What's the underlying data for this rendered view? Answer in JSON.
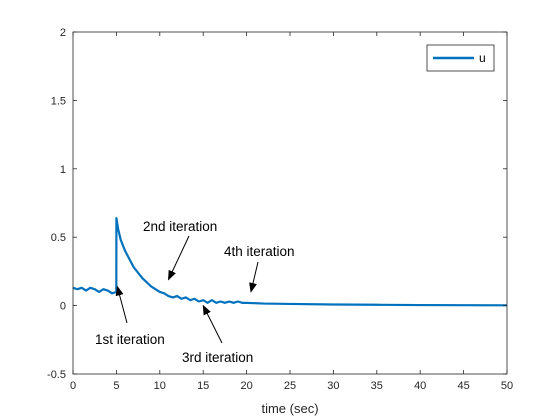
{
  "chart_data": {
    "type": "line",
    "title": "",
    "xlabel": "time (sec)",
    "ylabel": "",
    "xlim": [
      0,
      50
    ],
    "ylim": [
      -0.5,
      2
    ],
    "xticks": [
      0,
      5,
      10,
      15,
      20,
      25,
      30,
      35,
      40,
      45,
      50
    ],
    "yticks": [
      -0.5,
      0,
      0.5,
      1,
      1.5,
      2
    ],
    "grid": false,
    "legend_position": "top-right",
    "series": [
      {
        "name": "u",
        "color": "#0072BD",
        "x": [
          0,
          0.5,
          1,
          1.5,
          2,
          2.5,
          3,
          3.5,
          4,
          4.5,
          4.99,
          5,
          5.2,
          5.5,
          6,
          6.5,
          7,
          7.5,
          8,
          8.5,
          9,
          9.5,
          10,
          10.5,
          11,
          11.5,
          12,
          12.5,
          13,
          13.5,
          14,
          14.5,
          15,
          15.5,
          16,
          16.5,
          17,
          17.5,
          18,
          18.5,
          19,
          19.5,
          20,
          22,
          25,
          30,
          35,
          40,
          45,
          50
        ],
        "y": [
          0.13,
          0.12,
          0.13,
          0.11,
          0.13,
          0.12,
          0.1,
          0.12,
          0.11,
          0.09,
          0.1,
          0.64,
          0.56,
          0.48,
          0.4,
          0.34,
          0.28,
          0.24,
          0.2,
          0.17,
          0.14,
          0.12,
          0.1,
          0.09,
          0.07,
          0.06,
          0.07,
          0.05,
          0.06,
          0.04,
          0.05,
          0.03,
          0.04,
          0.02,
          0.04,
          0.02,
          0.03,
          0.02,
          0.03,
          0.02,
          0.03,
          0.02,
          0.02,
          0.015,
          0.012,
          0.008,
          0.006,
          0.004,
          0.003,
          0.002
        ]
      }
    ],
    "annotations": [
      {
        "text": "1st iteration",
        "point": [
          5.1,
          0.14
        ]
      },
      {
        "text": "2nd iteration",
        "point": [
          11,
          0.19
        ]
      },
      {
        "text": "3rd iteration",
        "point": [
          15,
          0.0
        ]
      },
      {
        "text": "4th iteration",
        "point": [
          20.5,
          0.1
        ]
      }
    ]
  }
}
